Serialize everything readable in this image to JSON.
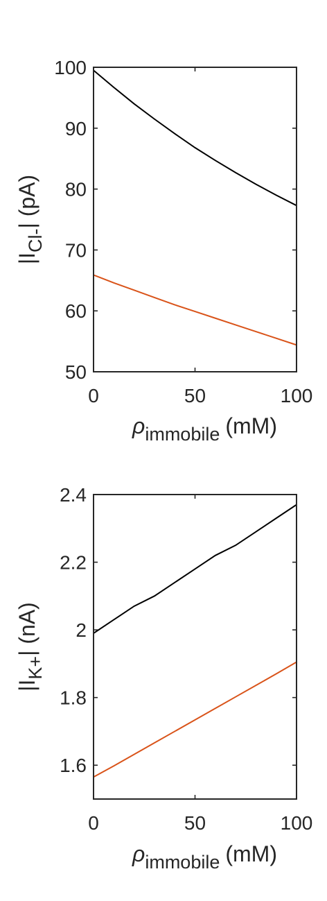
{
  "colors": {
    "axis": "#262626",
    "series_black": "#000000",
    "series_orange": "#D95319"
  },
  "chart_data": [
    {
      "type": "line",
      "title": "",
      "xlabel": {
        "symbol": "ρ",
        "subscript": "immobile",
        "unit": "(mM)"
      },
      "ylabel": {
        "prefix": "|I",
        "subscript": "Cl-",
        "suffix": "| (pA)"
      },
      "xlim": [
        0,
        100
      ],
      "ylim": [
        50,
        100
      ],
      "xticks": [
        0,
        50,
        100
      ],
      "xtick_labels": [
        "0",
        "50",
        "100"
      ],
      "yticks": [
        50,
        60,
        70,
        80,
        90,
        100
      ],
      "ytick_labels": [
        "50",
        "60",
        "70",
        "80",
        "90",
        "100"
      ],
      "x": [
        0,
        10,
        20,
        30,
        40,
        50,
        60,
        70,
        80,
        90,
        100
      ],
      "series": [
        {
          "name": "black",
          "color": "#000000",
          "values": [
            99.5,
            96.7,
            94.0,
            91.5,
            89.1,
            86.8,
            84.7,
            82.7,
            80.8,
            79.0,
            77.3
          ]
        },
        {
          "name": "orange",
          "color": "#D95319",
          "values": [
            65.9,
            64.6,
            63.4,
            62.2,
            61.0,
            59.9,
            58.8,
            57.7,
            56.6,
            55.5,
            54.4
          ]
        }
      ]
    },
    {
      "type": "line",
      "title": "",
      "xlabel": {
        "symbol": "ρ",
        "subscript": "immobile",
        "unit": "(mM)"
      },
      "ylabel": {
        "prefix": "|I",
        "subscript": "K+",
        "suffix": "| (nA)"
      },
      "xlim": [
        0,
        100
      ],
      "ylim": [
        1.5,
        2.4
      ],
      "xticks": [
        0,
        50,
        100
      ],
      "xtick_labels": [
        "0",
        "50",
        "100"
      ],
      "yticks": [
        1.6,
        1.8,
        2.0,
        2.2,
        2.4
      ],
      "ytick_labels": [
        "1.6",
        "1.8",
        "2",
        "2.2",
        "2.4"
      ],
      "x": [
        0,
        10,
        20,
        30,
        40,
        50,
        60,
        70,
        80,
        90,
        100
      ],
      "series": [
        {
          "name": "black",
          "color": "#000000",
          "values": [
            1.99,
            2.03,
            2.07,
            2.1,
            2.14,
            2.18,
            2.22,
            2.25,
            2.29,
            2.33,
            2.37
          ]
        },
        {
          "name": "orange",
          "color": "#D95319",
          "values": [
            1.565,
            1.598,
            1.632,
            1.666,
            1.7,
            1.734,
            1.768,
            1.802,
            1.836,
            1.87,
            1.905
          ]
        }
      ]
    }
  ]
}
